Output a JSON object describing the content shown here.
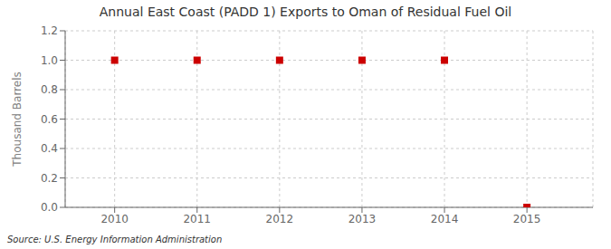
{
  "chart_data": {
    "type": "scatter",
    "title": "Annual East Coast (PADD 1) Exports to Oman of Residual Fuel Oil",
    "ylabel": "Thousand Barrels",
    "source": "Source: U.S. Energy Information Administration",
    "x": [
      2010,
      2011,
      2012,
      2013,
      2014,
      2015
    ],
    "values": [
      1,
      1,
      1,
      1,
      1,
      0
    ],
    "color": "#CC0000",
    "marker": "square",
    "xlim": [
      2009.4,
      2015.8
    ],
    "ylim": [
      0.0,
      1.2
    ],
    "xticks": [
      2010,
      2011,
      2012,
      2013,
      2014,
      2015
    ],
    "yticks": [
      {
        "value": 0.0,
        "label": "0.0"
      },
      0.2,
      0.4,
      0.6,
      0.8,
      {
        "value": 1.0,
        "label": "1.0"
      },
      1.2
    ],
    "grid": true
  }
}
